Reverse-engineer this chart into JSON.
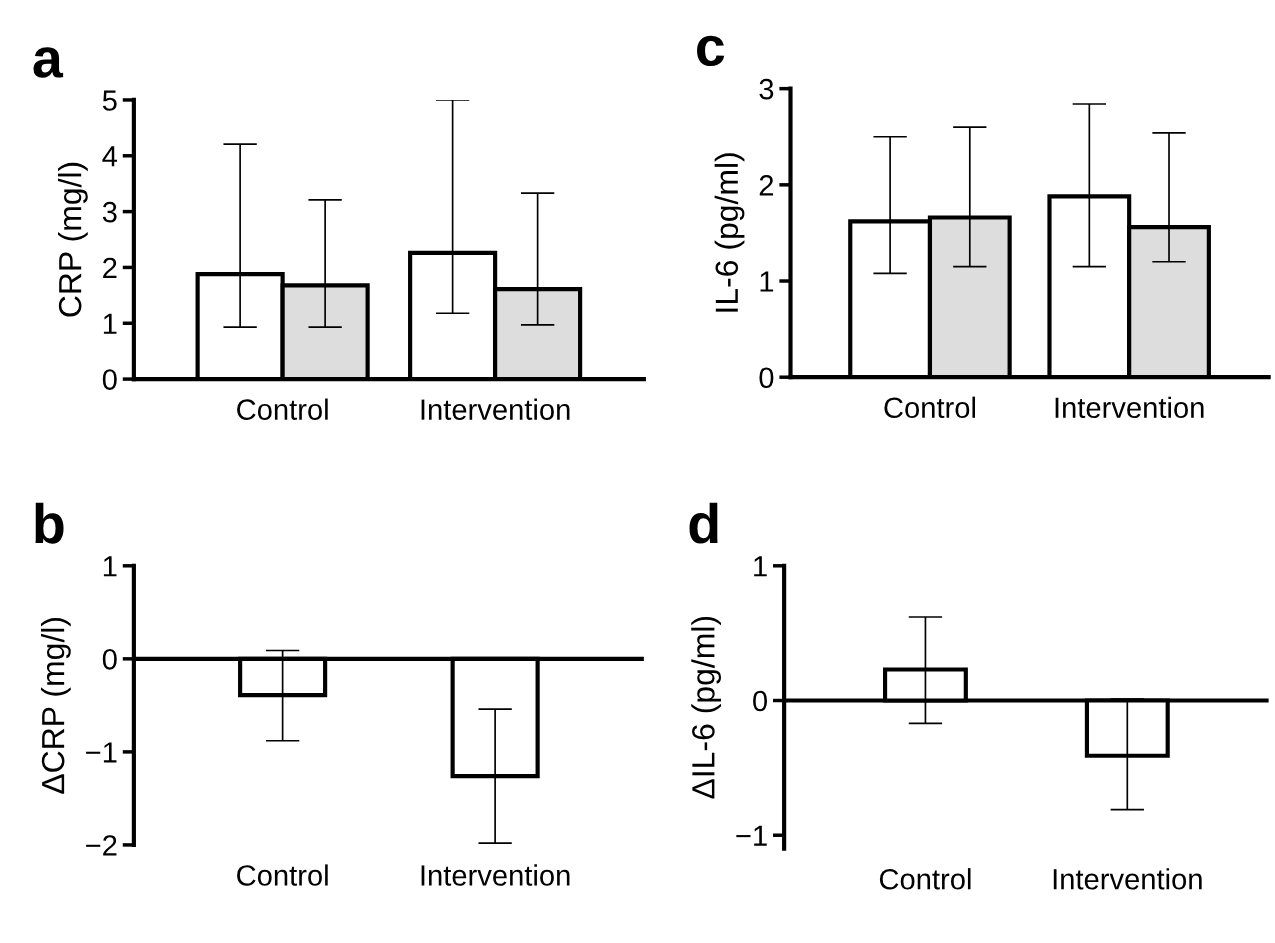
{
  "chart_data": [
    {
      "type": "bar",
      "annotations": [
        "a"
      ],
      "ylabel": "CRP (mg/l)",
      "categories": [
        "Control",
        "Intervention"
      ],
      "ylim": [
        0,
        5
      ],
      "yticks": [
        0,
        1,
        2,
        3,
        4,
        5
      ],
      "grid": false,
      "series": [
        {
          "color": "#ffffff",
          "values": [
            1.88,
            2.26
          ],
          "errors": [
            [
              0.93,
              4.21
            ],
            [
              1.18,
              5.0
            ]
          ]
        },
        {
          "color": "#dddddd",
          "values": [
            1.68,
            1.61
          ],
          "errors": [
            [
              0.93,
              3.21
            ],
            [
              0.97,
              3.33
            ]
          ]
        }
      ]
    },
    {
      "type": "bar",
      "annotations": [
        "b"
      ],
      "ylabel": "ΔCRP (mg/l)",
      "categories": [
        "Control",
        "Intervention"
      ],
      "ylim": [
        -2,
        1
      ],
      "yticks": [
        -2,
        -1,
        0,
        1
      ],
      "grid": false,
      "ref_lines": [
        {
          "axis": "y",
          "value": 0,
          "label": null,
          "color": "#000000"
        }
      ],
      "series": [
        {
          "color": "#ffffff",
          "values": [
            -0.39,
            -1.26
          ],
          "errors": [
            [
              -0.88,
              0.09
            ],
            [
              -1.98,
              -0.54
            ]
          ]
        }
      ]
    },
    {
      "type": "bar",
      "annotations": [
        "c"
      ],
      "ylabel": "IL-6 (pg/ml)",
      "categories": [
        "Control",
        "Intervention"
      ],
      "ylim": [
        0,
        3
      ],
      "yticks": [
        0,
        1,
        2,
        3
      ],
      "grid": false,
      "series": [
        {
          "color": "#ffffff",
          "values": [
            1.62,
            1.88
          ],
          "errors": [
            [
              1.08,
              2.5
            ],
            [
              1.15,
              2.84
            ]
          ]
        },
        {
          "color": "#dddddd",
          "values": [
            1.66,
            1.56
          ],
          "errors": [
            [
              1.15,
              2.6
            ],
            [
              1.2,
              2.54
            ]
          ]
        }
      ]
    },
    {
      "type": "bar",
      "annotations": [
        "d"
      ],
      "ylabel": "ΔIL-6 (pg/ml)",
      "categories": [
        "Control",
        "Intervention"
      ],
      "ylim": [
        -1.1,
        1
      ],
      "yticks": [
        -1,
        0,
        1
      ],
      "grid": false,
      "ref_lines": [
        {
          "axis": "y",
          "value": 0,
          "label": null,
          "color": "#000000"
        }
      ],
      "series": [
        {
          "color": "#ffffff",
          "values": [
            0.23,
            -0.41
          ],
          "errors": [
            [
              -0.17,
              0.62
            ],
            [
              -0.81,
              0.01
            ]
          ]
        }
      ]
    }
  ]
}
